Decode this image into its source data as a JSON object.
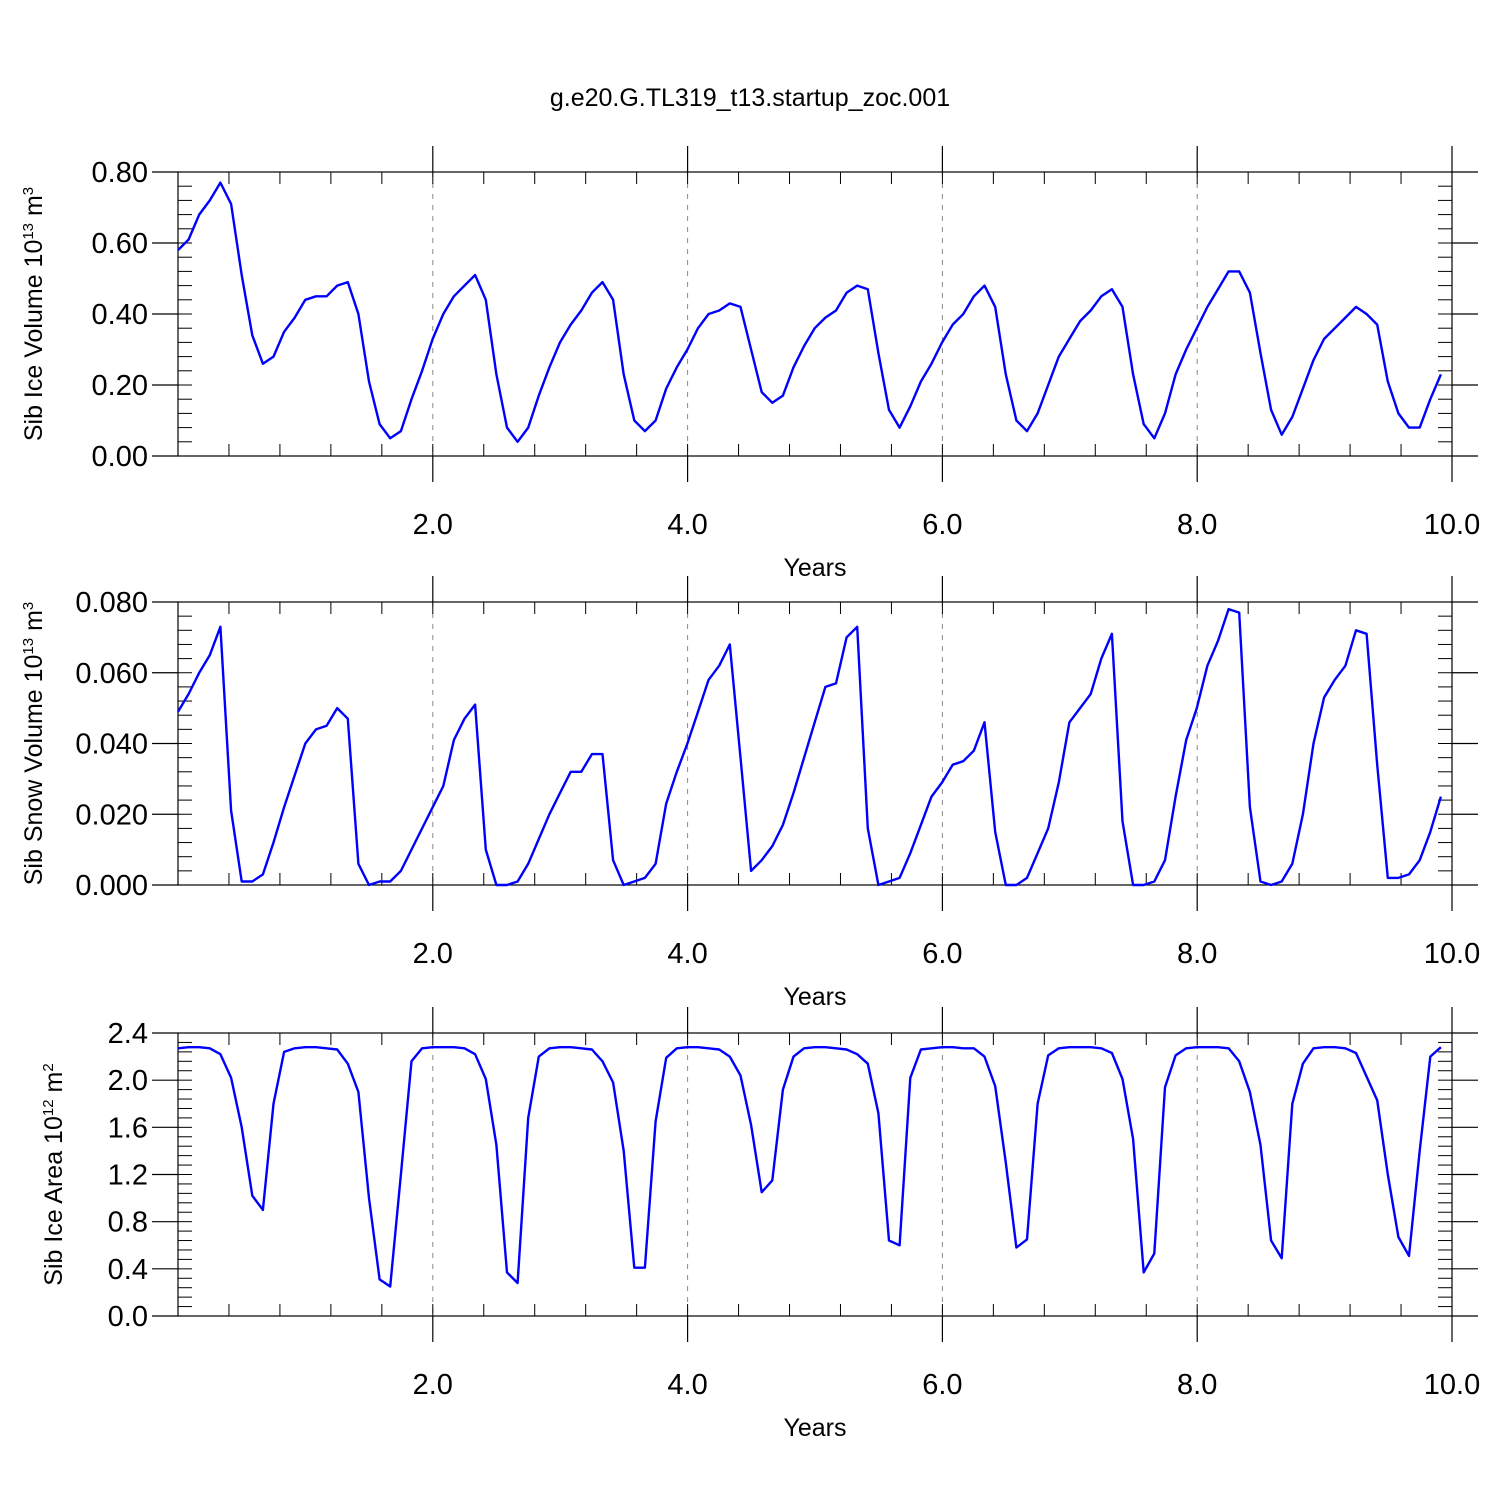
{
  "title": "g.e20.G.TL319_t13.startup_zoc.001",
  "colors": {
    "line": "#0000ff",
    "axes": "#000000",
    "grid": "#888888"
  },
  "chart_data": [
    {
      "type": "line",
      "ylabel": "Sib Ice Volume",
      "ylabel_unit_base": "10",
      "ylabel_unit_exp": "13",
      "ylabel_unit_tail": "m",
      "ylabel_unit_tail_exp": "3",
      "xlabel": "Years",
      "xlim": [
        0,
        10
      ],
      "ylim": [
        0,
        0.8
      ],
      "xticks": [
        2.0,
        4.0,
        6.0,
        8.0,
        10.0
      ],
      "xtick_labels": [
        "2.0",
        "4.0",
        "6.0",
        "8.0",
        "10.0"
      ],
      "yticks": [
        0.0,
        0.2,
        0.4,
        0.6,
        0.8
      ],
      "ytick_labels": [
        "0.00",
        "0.20",
        "0.40",
        "0.60",
        "0.80"
      ],
      "grid_x": [
        2,
        4,
        6,
        8
      ],
      "series": [
        {
          "x_start": 0.0,
          "x_step": 0.0833,
          "values": [
            0.58,
            0.61,
            0.68,
            0.72,
            0.77,
            0.71,
            0.51,
            0.34,
            0.26,
            0.28,
            0.35,
            0.39,
            0.44,
            0.45,
            0.45,
            0.48,
            0.49,
            0.4,
            0.21,
            0.09,
            0.05,
            0.07,
            0.16,
            0.24,
            0.33,
            0.4,
            0.45,
            0.48,
            0.51,
            0.44,
            0.23,
            0.08,
            0.04,
            0.08,
            0.17,
            0.25,
            0.32,
            0.37,
            0.41,
            0.46,
            0.49,
            0.44,
            0.23,
            0.1,
            0.07,
            0.1,
            0.19,
            0.25,
            0.3,
            0.36,
            0.4,
            0.41,
            0.43,
            0.42,
            0.3,
            0.18,
            0.15,
            0.17,
            0.25,
            0.31,
            0.36,
            0.39,
            0.41,
            0.46,
            0.48,
            0.47,
            0.29,
            0.13,
            0.08,
            0.14,
            0.21,
            0.26,
            0.32,
            0.37,
            0.4,
            0.45,
            0.48,
            0.42,
            0.23,
            0.1,
            0.07,
            0.12,
            0.2,
            0.28,
            0.33,
            0.38,
            0.41,
            0.45,
            0.47,
            0.42,
            0.23,
            0.09,
            0.05,
            0.12,
            0.23,
            0.3,
            0.36,
            0.42,
            0.47,
            0.52,
            0.52,
            0.46,
            0.29,
            0.13,
            0.06,
            0.11,
            0.19,
            0.27,
            0.33,
            0.36,
            0.39,
            0.42,
            0.4,
            0.37,
            0.21,
            0.12,
            0.08,
            0.08,
            0.16,
            0.23
          ]
        }
      ]
    },
    {
      "type": "line",
      "ylabel": "Sib Snow Volume",
      "ylabel_unit_base": "10",
      "ylabel_unit_exp": "13",
      "ylabel_unit_tail": "m",
      "ylabel_unit_tail_exp": "3",
      "xlabel": "Years",
      "xlim": [
        0,
        10
      ],
      "ylim": [
        0,
        0.08
      ],
      "xticks": [
        2.0,
        4.0,
        6.0,
        8.0,
        10.0
      ],
      "xtick_labels": [
        "2.0",
        "4.0",
        "6.0",
        "8.0",
        "10.0"
      ],
      "yticks": [
        0.0,
        0.02,
        0.04,
        0.06,
        0.08
      ],
      "ytick_labels": [
        "0.000",
        "0.020",
        "0.040",
        "0.060",
        "0.080"
      ],
      "grid_x": [
        2,
        4,
        6,
        8
      ],
      "series": [
        {
          "x_start": 0.0,
          "x_step": 0.0833,
          "values": [
            0.049,
            0.054,
            0.06,
            0.065,
            0.073,
            0.021,
            0.001,
            0.001,
            0.003,
            0.012,
            0.022,
            0.031,
            0.04,
            0.044,
            0.045,
            0.05,
            0.047,
            0.006,
            0.0,
            0.001,
            0.001,
            0.004,
            0.01,
            0.016,
            0.022,
            0.028,
            0.041,
            0.047,
            0.051,
            0.01,
            0.0,
            0.0,
            0.001,
            0.006,
            0.013,
            0.02,
            0.026,
            0.032,
            0.032,
            0.037,
            0.037,
            0.007,
            0.0,
            0.001,
            0.002,
            0.006,
            0.023,
            0.032,
            0.04,
            0.049,
            0.058,
            0.062,
            0.068,
            0.036,
            0.004,
            0.007,
            0.011,
            0.017,
            0.026,
            0.036,
            0.046,
            0.056,
            0.057,
            0.07,
            0.073,
            0.016,
            0.0,
            0.001,
            0.002,
            0.009,
            0.017,
            0.025,
            0.029,
            0.034,
            0.035,
            0.038,
            0.046,
            0.015,
            0.0,
            0.0,
            0.002,
            0.009,
            0.016,
            0.029,
            0.046,
            0.05,
            0.054,
            0.064,
            0.071,
            0.018,
            0.0,
            0.0,
            0.001,
            0.007,
            0.025,
            0.041,
            0.05,
            0.062,
            0.069,
            0.078,
            0.077,
            0.022,
            0.001,
            0.0,
            0.001,
            0.006,
            0.02,
            0.04,
            0.053,
            0.058,
            0.062,
            0.072,
            0.071,
            0.034,
            0.002,
            0.002,
            0.003,
            0.007,
            0.015,
            0.025
          ]
        }
      ]
    },
    {
      "type": "line",
      "ylabel": "Sib Ice Area",
      "ylabel_unit_base": "10",
      "ylabel_unit_exp": "12",
      "ylabel_unit_tail": "m",
      "ylabel_unit_tail_exp": "2",
      "xlabel": "Years",
      "xlim": [
        0,
        10
      ],
      "ylim": [
        0,
        2.4
      ],
      "xticks": [
        2.0,
        4.0,
        6.0,
        8.0,
        10.0
      ],
      "xtick_labels": [
        "2.0",
        "4.0",
        "6.0",
        "8.0",
        "10.0"
      ],
      "yticks": [
        0.0,
        0.4,
        0.8,
        1.2,
        1.6,
        2.0,
        2.4
      ],
      "ytick_labels": [
        "0.0",
        "0.4",
        "0.8",
        "1.2",
        "1.6",
        "2.0",
        "2.4"
      ],
      "grid_x": [
        2,
        4,
        6,
        8
      ],
      "series": [
        {
          "x_start": 0.0,
          "x_step": 0.0833,
          "values": [
            2.27,
            2.28,
            2.28,
            2.27,
            2.22,
            2.02,
            1.6,
            1.02,
            0.9,
            1.8,
            2.24,
            2.27,
            2.28,
            2.28,
            2.27,
            2.26,
            2.14,
            1.9,
            1.0,
            0.31,
            0.25,
            1.2,
            2.16,
            2.27,
            2.28,
            2.28,
            2.28,
            2.27,
            2.22,
            2.01,
            1.45,
            0.37,
            0.28,
            1.68,
            2.2,
            2.27,
            2.28,
            2.28,
            2.27,
            2.26,
            2.16,
            1.98,
            1.4,
            0.41,
            0.41,
            1.65,
            2.19,
            2.27,
            2.28,
            2.28,
            2.27,
            2.26,
            2.2,
            2.04,
            1.62,
            1.05,
            1.15,
            1.92,
            2.2,
            2.27,
            2.28,
            2.28,
            2.27,
            2.26,
            2.22,
            2.14,
            1.72,
            0.64,
            0.6,
            2.02,
            2.26,
            2.27,
            2.28,
            2.28,
            2.27,
            2.27,
            2.2,
            1.95,
            1.3,
            0.58,
            0.65,
            1.8,
            2.21,
            2.27,
            2.28,
            2.28,
            2.28,
            2.27,
            2.23,
            2.01,
            1.5,
            0.37,
            0.53,
            1.94,
            2.21,
            2.27,
            2.28,
            2.28,
            2.28,
            2.27,
            2.16,
            1.9,
            1.45,
            0.64,
            0.49,
            1.8,
            2.14,
            2.27,
            2.28,
            2.28,
            2.27,
            2.23,
            2.03,
            1.83,
            1.2,
            0.67,
            0.51,
            1.4,
            2.2,
            2.28
          ]
        }
      ]
    }
  ]
}
